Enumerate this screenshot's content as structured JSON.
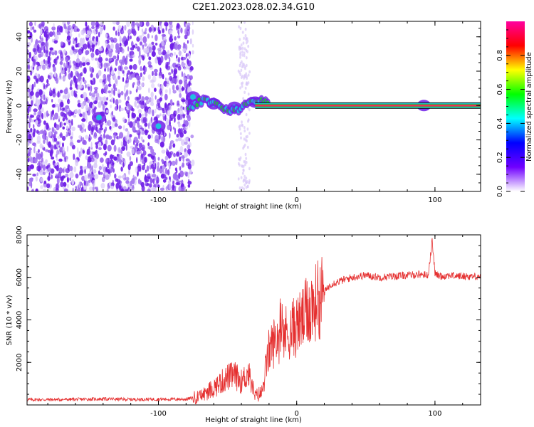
{
  "title": "C2E1.2023.028.02.34.G10",
  "colors": {
    "snr_line": "#e53030",
    "spec_sparse": "#d8c8f8",
    "spec_low": "#7020e8",
    "spec_mid": "#20c0e0",
    "spec_high": "#e8305a",
    "ridge_green": "#20c040"
  },
  "chart_data": [
    {
      "type": "heatmap",
      "name": "spectrogram",
      "xlabel": "Height of straight line (km)",
      "ylabel": "Frequency (Hz)",
      "xlim": [
        -195,
        133
      ],
      "ylim": [
        -50,
        49
      ],
      "xticks": [
        {
          "value": -100,
          "label": "-100"
        },
        {
          "value": 0,
          "label": "0"
        },
        {
          "value": 100,
          "label": "100"
        }
      ],
      "yticks": [
        {
          "value": -40,
          "label": "-40"
        },
        {
          "value": -20,
          "label": "-20"
        },
        {
          "value": 0,
          "label": "0"
        },
        {
          "value": 20,
          "label": "20"
        },
        {
          "value": 40,
          "label": "40"
        }
      ],
      "ridge": {
        "x_start": -30,
        "x_end": 133,
        "frequency": 0,
        "amplitude": 0.9
      },
      "features": [
        {
          "x": -143,
          "y": -7,
          "amplitude": 0.35
        },
        {
          "x": -100,
          "y": -12,
          "amplitude": 0.38
        },
        {
          "x": -75,
          "y": 5,
          "amplitude": 0.45
        },
        {
          "x": -60,
          "y": 1,
          "amplitude": 0.55
        },
        {
          "x": -45,
          "y": -1,
          "amplitude": 0.5
        },
        {
          "x": -30,
          "y": 2,
          "amplitude": 0.6
        },
        {
          "x": 92,
          "y": 0,
          "amplitude": 0.4
        }
      ],
      "colorbar": {
        "label": "Normalized spectral amplitude",
        "range": [
          0,
          1
        ],
        "ticks": [
          {
            "value": 0.0,
            "label": "0.0"
          },
          {
            "value": 0.2,
            "label": "0.2"
          },
          {
            "value": 0.4,
            "label": "0.4"
          },
          {
            "value": 0.6,
            "label": "0.6"
          },
          {
            "value": 0.8,
            "label": "0.8"
          }
        ],
        "stops": [
          "#ffffff",
          "#7000ff",
          "#0000ff",
          "#00ffff",
          "#00ff00",
          "#ffff00",
          "#ff0000",
          "#ff00a0"
        ]
      }
    },
    {
      "type": "line",
      "name": "snr",
      "xlabel": "Height of straight line (km)",
      "ylabel": "SNR (10 * v/v)",
      "xlim": [
        -195,
        133
      ],
      "ylim": [
        0,
        8000
      ],
      "xticks": [
        {
          "value": -100,
          "label": "-100"
        },
        {
          "value": 0,
          "label": "0"
        },
        {
          "value": 100,
          "label": "100"
        }
      ],
      "yticks": [
        {
          "value": 2000,
          "label": "2000"
        },
        {
          "value": 4000,
          "label": "4000"
        },
        {
          "value": 6000,
          "label": "6000"
        },
        {
          "value": 8000,
          "label": "8000"
        }
      ],
      "series": [
        {
          "x": [
            -195,
            -180,
            -160,
            -140,
            -120,
            -100,
            -80,
            -70,
            -60,
            -50,
            -45,
            -40,
            -35,
            -30,
            -25,
            -20,
            -15,
            -10,
            -5,
            0,
            5,
            10,
            15,
            20,
            25,
            30,
            40,
            50,
            60,
            70,
            80,
            90,
            95,
            98,
            100,
            102,
            105,
            110,
            120,
            133
          ],
          "y": [
            250,
            250,
            260,
            280,
            260,
            270,
            270,
            400,
            800,
            1300,
            1400,
            1100,
            1500,
            400,
            600,
            2600,
            3100,
            3300,
            3500,
            3700,
            4100,
            4600,
            4900,
            5300,
            5700,
            5800,
            6000,
            6100,
            6000,
            6050,
            6100,
            6150,
            6100,
            7700,
            6200,
            6100,
            6050,
            6100,
            6050,
            6050
          ]
        }
      ]
    }
  ]
}
